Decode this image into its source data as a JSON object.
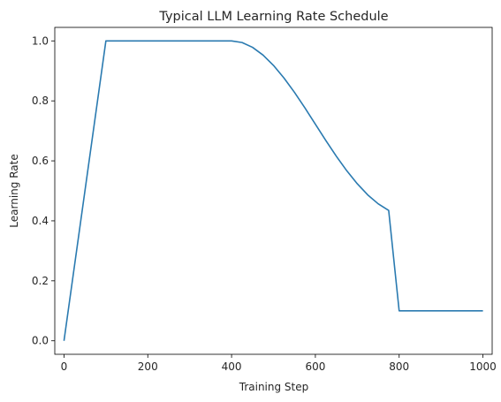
{
  "chart_data": {
    "type": "line",
    "title": "Typical LLM Learning Rate Schedule",
    "xlabel": "Training Step",
    "ylabel": "Learning Rate",
    "xlim": [
      -22,
      1022
    ],
    "ylim": [
      -0.045,
      1.045
    ],
    "xticks": [
      0,
      200,
      400,
      600,
      800,
      1000
    ],
    "yticks": [
      0.0,
      0.2,
      0.4,
      0.6,
      0.8,
      1.0
    ],
    "xtick_labels": [
      "0",
      "200",
      "400",
      "600",
      "800",
      "1000"
    ],
    "ytick_labels": [
      "0.0",
      "0.2",
      "0.4",
      "0.6",
      "0.8",
      "1.0"
    ],
    "grid": false,
    "legend": "none",
    "series": [
      {
        "color": "#2a7ab0",
        "x": [
          0,
          100,
          400,
          425,
          450,
          475,
          500,
          525,
          550,
          575,
          600,
          625,
          650,
          675,
          700,
          725,
          750,
          775,
          800,
          1000
        ],
        "y": [
          0.0,
          1.0,
          1.0,
          0.9945,
          0.9785,
          0.9528,
          0.9182,
          0.8763,
          0.8286,
          0.7766,
          0.7222,
          0.6678,
          0.6154,
          0.5669,
          0.5237,
          0.4865,
          0.4567,
          0.4346,
          0.1,
          0.1
        ]
      }
    ]
  }
}
